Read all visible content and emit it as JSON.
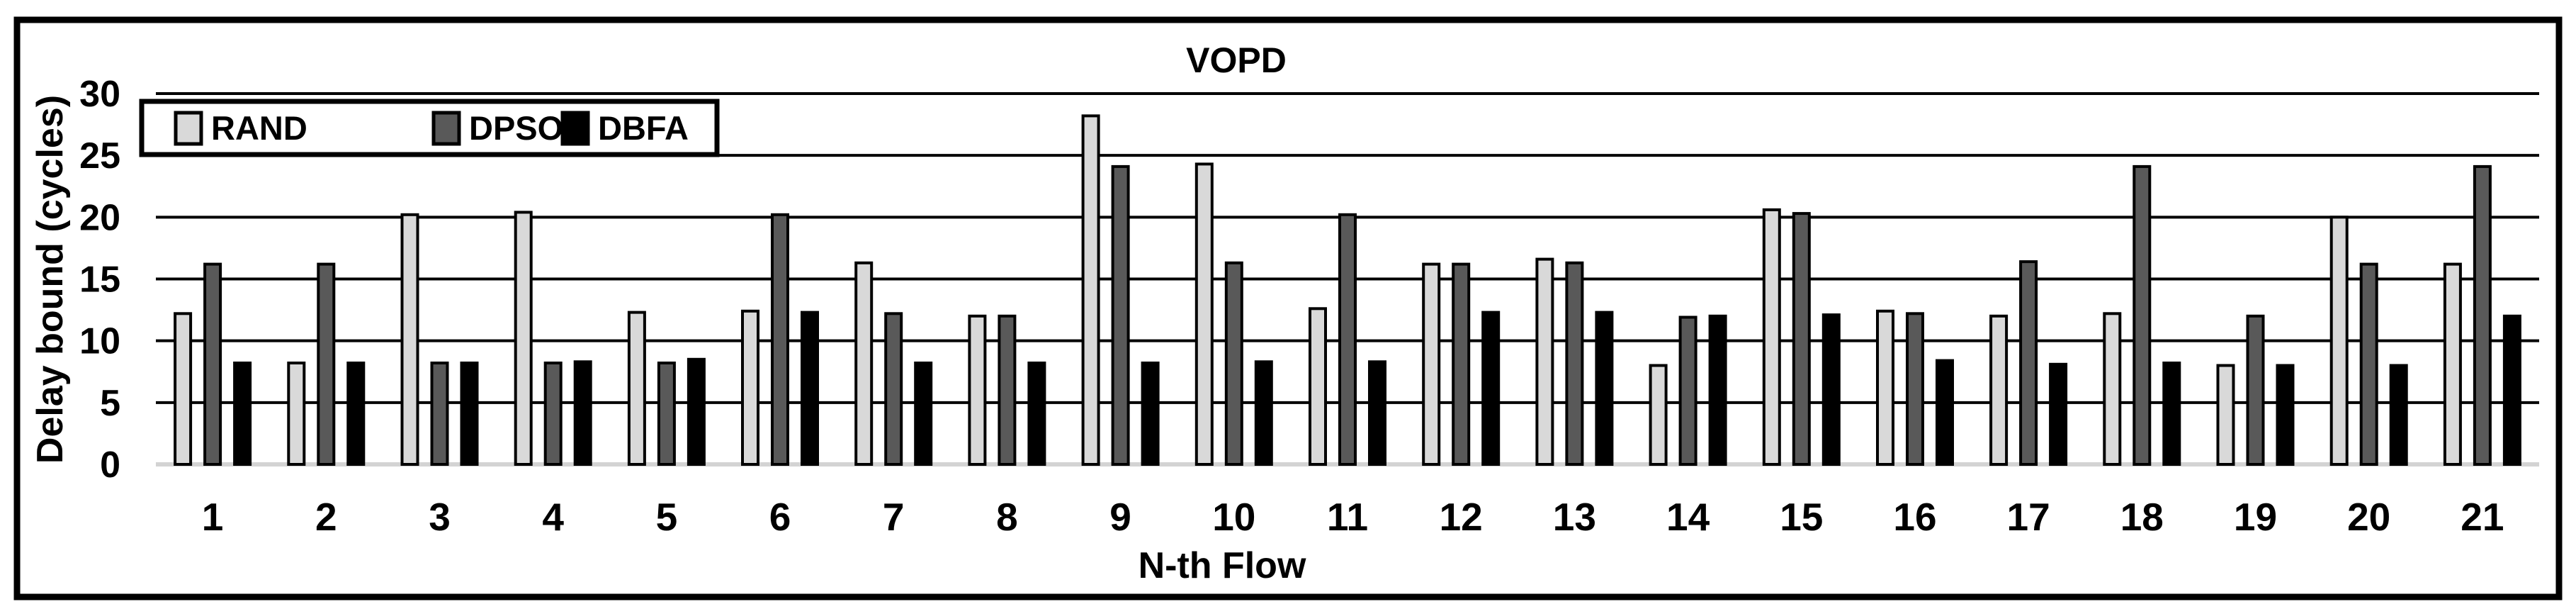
{
  "figure": {
    "title": "VOPD"
  },
  "axes": {
    "y_title": "Delay bound (cycles)",
    "x_title": "N-th Flow",
    "y_ticks": [
      0,
      5,
      10,
      15,
      20,
      25,
      30
    ]
  },
  "legend": {
    "items": [
      {
        "label": "RAND",
        "color": "#d9d9d9"
      },
      {
        "label": "DPSO",
        "color": "#595959"
      },
      {
        "label": "DBFA",
        "color": "#000000"
      }
    ]
  },
  "colors": {
    "bar_outline": "#000000",
    "gridline": "#000000",
    "baseline": "#d3d3d3",
    "frame": "#000000",
    "background": "#ffffff"
  },
  "chart_data": {
    "type": "bar",
    "title": "VOPD",
    "xlabel": "N-th Flow",
    "ylabel": "Delay bound (cycles)",
    "ylim": [
      0,
      30
    ],
    "ytick_step": 5,
    "grid": true,
    "legend_position": "top-left-inside",
    "categories": [
      "1",
      "2",
      "3",
      "4",
      "5",
      "6",
      "7",
      "8",
      "9",
      "10",
      "11",
      "12",
      "13",
      "14",
      "15",
      "16",
      "17",
      "18",
      "19",
      "20",
      "21"
    ],
    "series": [
      {
        "name": "RAND",
        "color": "#d9d9d9",
        "values": [
          12.2,
          8.2,
          20.2,
          20.4,
          12.3,
          12.4,
          16.3,
          12.0,
          28.2,
          24.3,
          12.6,
          16.2,
          16.6,
          8.0,
          20.6,
          12.4,
          12.0,
          12.2,
          8.0,
          20.0,
          16.2
        ]
      },
      {
        "name": "DPSO",
        "color": "#595959",
        "values": [
          16.2,
          16.2,
          8.2,
          8.2,
          8.2,
          20.2,
          12.2,
          12.0,
          24.1,
          16.3,
          20.2,
          16.2,
          16.3,
          11.9,
          20.3,
          12.2,
          16.4,
          24.1,
          12.0,
          16.2,
          24.1
        ]
      },
      {
        "name": "DBFA",
        "color": "#000000",
        "values": [
          8.2,
          8.2,
          8.2,
          8.3,
          8.5,
          12.3,
          8.2,
          8.2,
          8.2,
          8.3,
          8.3,
          12.3,
          12.3,
          12.0,
          12.1,
          8.4,
          8.1,
          8.2,
          8.0,
          8.0,
          12.0
        ]
      }
    ]
  }
}
